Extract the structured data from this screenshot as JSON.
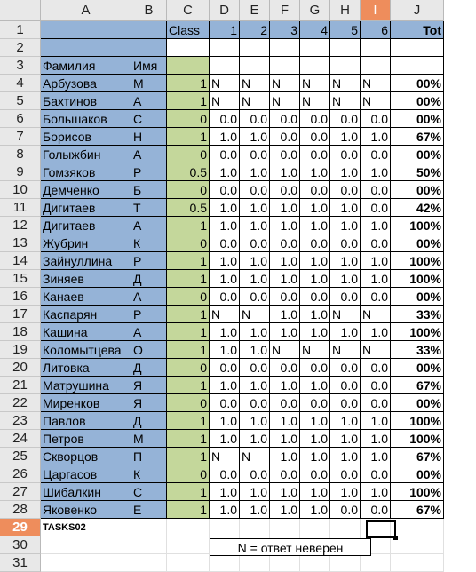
{
  "columns": [
    "A",
    "B",
    "C",
    "D",
    "E",
    "F",
    "G",
    "H",
    "I",
    "J"
  ],
  "selected_column": "I",
  "selected_row": 29,
  "header_row": {
    "class_label": "Class",
    "tasks": [
      "1",
      "2",
      "3",
      "4",
      "5",
      "6"
    ],
    "total_label": "Tot"
  },
  "labels_row": {
    "surname": "Фамилия",
    "name": "Имя"
  },
  "students": [
    {
      "surname": "Арбузова",
      "initial": "М",
      "cls": "1",
      "scores": [
        "N",
        "N",
        "N",
        "N",
        "N",
        "N"
      ],
      "total": "00%"
    },
    {
      "surname": "Бахтинов",
      "initial": "А",
      "cls": "1",
      "scores": [
        "N",
        "N",
        "N",
        "N",
        "N",
        "N"
      ],
      "total": "00%"
    },
    {
      "surname": "Большаков",
      "initial": "С",
      "cls": "0",
      "scores": [
        "0.0",
        "0.0",
        "0.0",
        "0.0",
        "0.0",
        "0.0"
      ],
      "total": "00%"
    },
    {
      "surname": "Борисов",
      "initial": "Н",
      "cls": "1",
      "scores": [
        "1.0",
        "1.0",
        "0.0",
        "0.0",
        "1.0",
        "1.0"
      ],
      "total": "67%"
    },
    {
      "surname": "Голыжбин",
      "initial": "А",
      "cls": "0",
      "scores": [
        "0.0",
        "0.0",
        "0.0",
        "0.0",
        "0.0",
        "0.0"
      ],
      "total": "00%"
    },
    {
      "surname": "Гомзяков",
      "initial": "Р",
      "cls": "0.5",
      "scores": [
        "1.0",
        "1.0",
        "1.0",
        "1.0",
        "1.0",
        "1.0"
      ],
      "total": "50%"
    },
    {
      "surname": "Демченко",
      "initial": "Б",
      "cls": "0",
      "scores": [
        "0.0",
        "0.0",
        "0.0",
        "0.0",
        "0.0",
        "0.0"
      ],
      "total": "00%"
    },
    {
      "surname": "Дигитаев",
      "initial": "Т",
      "cls": "0.5",
      "scores": [
        "1.0",
        "1.0",
        "1.0",
        "1.0",
        "1.0",
        "0.0"
      ],
      "total": "42%"
    },
    {
      "surname": "Дигитаев",
      "initial": "А",
      "cls": "1",
      "scores": [
        "1.0",
        "1.0",
        "1.0",
        "1.0",
        "1.0",
        "1.0"
      ],
      "total": "100%"
    },
    {
      "surname": "Жубрин",
      "initial": "К",
      "cls": "0",
      "scores": [
        "0.0",
        "0.0",
        "0.0",
        "0.0",
        "0.0",
        "0.0"
      ],
      "total": "00%"
    },
    {
      "surname": "Зайнуллина",
      "initial": "Р",
      "cls": "1",
      "scores": [
        "1.0",
        "1.0",
        "1.0",
        "1.0",
        "1.0",
        "1.0"
      ],
      "total": "100%"
    },
    {
      "surname": "Зиняев",
      "initial": "Д",
      "cls": "1",
      "scores": [
        "1.0",
        "1.0",
        "1.0",
        "1.0",
        "1.0",
        "1.0"
      ],
      "total": "100%"
    },
    {
      "surname": "Канаев",
      "initial": "А",
      "cls": "0",
      "scores": [
        "0.0",
        "0.0",
        "0.0",
        "0.0",
        "0.0",
        "0.0"
      ],
      "total": "00%"
    },
    {
      "surname": "Каспарян",
      "initial": "Р",
      "cls": "1",
      "scores": [
        "N",
        "N",
        "1.0",
        "1.0",
        "N",
        "N"
      ],
      "total": "33%"
    },
    {
      "surname": "Кашина",
      "initial": "А",
      "cls": "1",
      "scores": [
        "1.0",
        "1.0",
        "1.0",
        "1.0",
        "1.0",
        "1.0"
      ],
      "total": "100%"
    },
    {
      "surname": "Коломытцева",
      "initial": "О",
      "cls": "1",
      "scores": [
        "1.0",
        "1.0",
        "N",
        "N",
        "N",
        "N"
      ],
      "total": "33%"
    },
    {
      "surname": "Литовка",
      "initial": "Д",
      "cls": "0",
      "scores": [
        "0.0",
        "0.0",
        "0.0",
        "0.0",
        "0.0",
        "0.0"
      ],
      "total": "00%"
    },
    {
      "surname": "Матрушина",
      "initial": "Я",
      "cls": "1",
      "scores": [
        "1.0",
        "1.0",
        "1.0",
        "1.0",
        "0.0",
        "0.0"
      ],
      "total": "67%"
    },
    {
      "surname": "Миренков",
      "initial": "Я",
      "cls": "0",
      "scores": [
        "0.0",
        "0.0",
        "0.0",
        "0.0",
        "0.0",
        "0.0"
      ],
      "total": "00%"
    },
    {
      "surname": "Павлов",
      "initial": "Д",
      "cls": "1",
      "scores": [
        "1.0",
        "1.0",
        "1.0",
        "1.0",
        "1.0",
        "1.0"
      ],
      "total": "100%"
    },
    {
      "surname": "Петров",
      "initial": "М",
      "cls": "1",
      "scores": [
        "1.0",
        "1.0",
        "1.0",
        "1.0",
        "1.0",
        "1.0"
      ],
      "total": "100%"
    },
    {
      "surname": "Скворцов",
      "initial": "П",
      "cls": "1",
      "scores": [
        "N",
        "N",
        "1.0",
        "1.0",
        "1.0",
        "1.0"
      ],
      "total": "67%"
    },
    {
      "surname": "Царгасов",
      "initial": "К",
      "cls": "0",
      "scores": [
        "0.0",
        "0.0",
        "0.0",
        "0.0",
        "0.0",
        "0.0"
      ],
      "total": "00%"
    },
    {
      "surname": "Шибалкин",
      "initial": "С",
      "cls": "1",
      "scores": [
        "1.0",
        "1.0",
        "1.0",
        "1.0",
        "1.0",
        "1.0"
      ],
      "total": "100%"
    },
    {
      "surname": "Яковенко",
      "initial": "Е",
      "cls": "1",
      "scores": [
        "1.0",
        "1.0",
        "1.0",
        "1.0",
        "0.0",
        "0.0"
      ],
      "total": "67%"
    }
  ],
  "footer": {
    "tasks_label": "TASKS02",
    "note": "N = ответ неверен"
  }
}
